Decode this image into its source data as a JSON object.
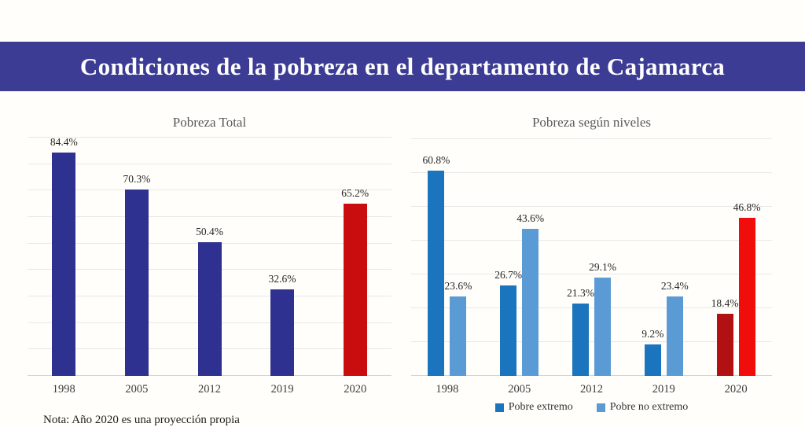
{
  "page": {
    "title": "Condiciones de la pobreza en el departamento de Cajamarca",
    "note": "Nota: Año 2020 es una proyección propia",
    "colors": {
      "banner_background": "#3C3C94",
      "banner_text": "#FFFFFF",
      "poverty_total_bar": "#2E3190",
      "poverty_total_projection_bar": "#C90D0F",
      "extreme_poor_bar": "#1B74BE",
      "non_extreme_poor_bar": "#5B9BD5",
      "extreme_poor_projection_bar": "#B11112",
      "non_extreme_poor_projection_bar": "#F20D0D",
      "gridline": "#E8E8E8"
    }
  },
  "chart_data": [
    {
      "type": "bar",
      "title": "Pobreza Total",
      "categories": [
        "1998",
        "2005",
        "2012",
        "2019",
        "2020"
      ],
      "values": [
        84.4,
        70.3,
        50.4,
        32.6,
        65.2
      ],
      "value_labels": [
        "84.4%",
        "70.3%",
        "50.4%",
        "32.6%",
        "65.2%"
      ],
      "bar_colors": [
        "#2E3190",
        "#2E3190",
        "#2E3190",
        "#2E3190",
        "#C90D0F"
      ],
      "xlabel": "",
      "ylabel": "",
      "ylim": [
        0,
        90
      ],
      "gridline_step": 10,
      "grid": true,
      "y_axis_tick_labels_visible": false,
      "legend_visible": false
    },
    {
      "type": "bar",
      "title": "Pobreza según niveles",
      "categories": [
        "1998",
        "2005",
        "2012",
        "2019",
        "2020"
      ],
      "series": [
        {
          "name": "Pobre extremo",
          "values": [
            60.8,
            26.7,
            21.3,
            9.2,
            18.4
          ],
          "value_labels": [
            "60.8%",
            "26.7%",
            "21.3%",
            "9.2%",
            "18.4%"
          ],
          "colors": [
            "#1B74BE",
            "#1B74BE",
            "#1B74BE",
            "#1B74BE",
            "#B11112"
          ]
        },
        {
          "name": "Pobre no extremo",
          "values": [
            23.6,
            43.6,
            29.1,
            23.4,
            46.8
          ],
          "value_labels": [
            "23.6%",
            "43.6%",
            "29.1%",
            "23.4%",
            "46.8%"
          ],
          "colors": [
            "#5B9BD5",
            "#5B9BD5",
            "#5B9BD5",
            "#5B9BD5",
            "#F20D0D"
          ]
        }
      ],
      "legend": {
        "position": "bottom",
        "items": [
          "Pobre extremo",
          "Pobre no extremo"
        ],
        "swatch_colors": [
          "#1B74BE",
          "#5B9BD5"
        ]
      },
      "xlabel": "",
      "ylabel": "",
      "ylim": [
        0,
        70
      ],
      "gridline_step": 10,
      "grid": true,
      "y_axis_tick_labels_visible": false
    }
  ]
}
